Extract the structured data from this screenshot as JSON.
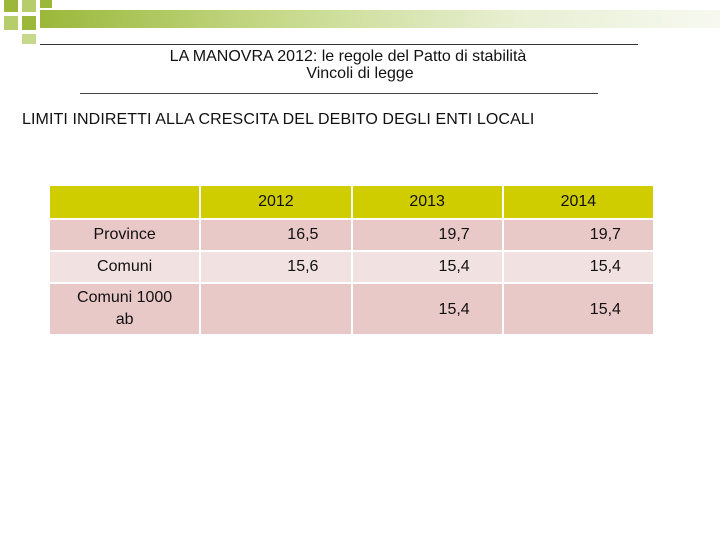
{
  "colors": {
    "accent_green": "#9bb83a",
    "header_fill": "#cfcc00",
    "row_fill_dark": "#e9c8c8",
    "row_fill_light": "#f2e1e1"
  },
  "slide": {
    "title_line1": "LA  MANOVRA 2012: le regole del Patto di stabilità",
    "title_line2": "Vincoli  di legge",
    "section_heading": "LIMITI INDIRETTI ALLA CRESCITA DEL DEBITO DEGLI ENTI LOCALI"
  },
  "table": {
    "headers": [
      "",
      "2012",
      "2013",
      "2014"
    ],
    "rows": [
      {
        "label": "Province",
        "values": [
          "16,5",
          "19,7",
          "19,7"
        ]
      },
      {
        "label": "Comuni",
        "values": [
          "15,6",
          "15,4",
          "15,4"
        ]
      },
      {
        "label_line1": "Comuni 1000",
        "label_line2": "ab",
        "values": [
          "",
          "15,4",
          "15,4"
        ]
      }
    ]
  }
}
